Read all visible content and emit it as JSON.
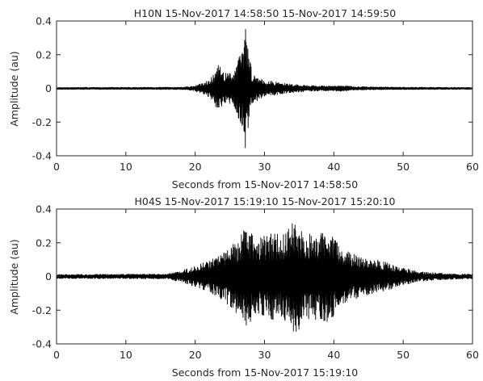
{
  "chart_data": [
    {
      "type": "line",
      "title": "H10N 15-Nov-2017 14:58:50 15-Nov-2017 14:59:50",
      "xlabel": "Seconds from 15-Nov-2017 14:58:50",
      "ylabel": "Amplitude (au)",
      "xlim": [
        0,
        60
      ],
      "ylim": [
        -0.4,
        0.4
      ],
      "x_ticks": [
        "0",
        "10",
        "20",
        "30",
        "40",
        "50",
        "60"
      ],
      "y_ticks": [
        "0.4",
        "0.2",
        "0",
        "-0.2",
        "-0.4"
      ],
      "grid": false,
      "series": [
        {
          "color": "#000000",
          "envelope": [
            {
              "t": 0,
              "a": 0.006
            },
            {
              "t": 18,
              "a": 0.007
            },
            {
              "t": 19.5,
              "a": 0.012
            },
            {
              "t": 21,
              "a": 0.03
            },
            {
              "t": 22.5,
              "a": 0.07
            },
            {
              "t": 23.3,
              "a": 0.14
            },
            {
              "t": 24.5,
              "a": 0.09
            },
            {
              "t": 25.5,
              "a": 0.1
            },
            {
              "t": 26.8,
              "a": 0.24
            },
            {
              "t": 27.3,
              "a": 0.37
            },
            {
              "t": 28.2,
              "a": 0.09
            },
            {
              "t": 30,
              "a": 0.05
            },
            {
              "t": 33,
              "a": 0.03
            },
            {
              "t": 36,
              "a": 0.018
            },
            {
              "t": 40,
              "a": 0.014
            },
            {
              "t": 41,
              "a": 0.02
            },
            {
              "t": 43,
              "a": 0.01
            },
            {
              "t": 52,
              "a": 0.007
            },
            {
              "t": 60,
              "a": 0.006
            }
          ]
        }
      ]
    },
    {
      "type": "line",
      "title": "H04S 15-Nov-2017 15:19:10 15-Nov-2017 15:20:10",
      "xlabel": "Seconds from 15-Nov-2017 15:19:10",
      "ylabel": "Amplitude (au)",
      "xlim": [
        0,
        60
      ],
      "ylim": [
        -0.4,
        0.4
      ],
      "x_ticks": [
        "0",
        "10",
        "20",
        "30",
        "40",
        "50",
        "60"
      ],
      "y_ticks": [
        "0.4",
        "0.2",
        "0",
        "-0.2",
        "-0.4"
      ],
      "grid": false,
      "series": [
        {
          "color": "#000000",
          "envelope": [
            {
              "t": 0,
              "a": 0.012
            },
            {
              "t": 16,
              "a": 0.015
            },
            {
              "t": 18,
              "a": 0.035
            },
            {
              "t": 20,
              "a": 0.06
            },
            {
              "t": 22,
              "a": 0.1
            },
            {
              "t": 24,
              "a": 0.14
            },
            {
              "t": 26,
              "a": 0.22
            },
            {
              "t": 27.5,
              "a": 0.3
            },
            {
              "t": 29,
              "a": 0.22
            },
            {
              "t": 30.5,
              "a": 0.26
            },
            {
              "t": 32.5,
              "a": 0.25
            },
            {
              "t": 34.3,
              "a": 0.36
            },
            {
              "t": 36,
              "a": 0.25
            },
            {
              "t": 38,
              "a": 0.26
            },
            {
              "t": 39.3,
              "a": 0.28
            },
            {
              "t": 41,
              "a": 0.17
            },
            {
              "t": 44,
              "a": 0.12
            },
            {
              "t": 47,
              "a": 0.09
            },
            {
              "t": 49.5,
              "a": 0.06
            },
            {
              "t": 52,
              "a": 0.03
            },
            {
              "t": 56,
              "a": 0.018
            },
            {
              "t": 60,
              "a": 0.014
            }
          ]
        }
      ]
    }
  ]
}
